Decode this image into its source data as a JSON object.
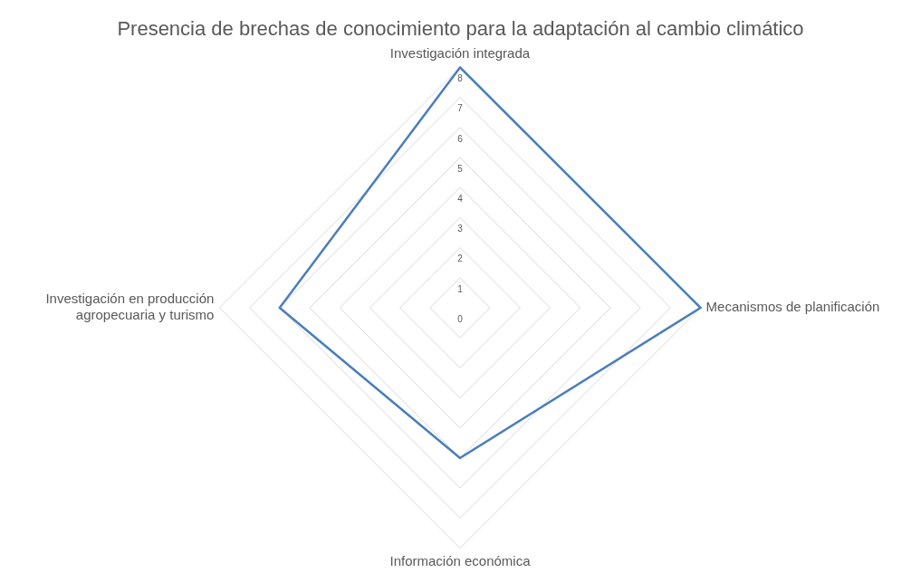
{
  "chart_data": {
    "type": "radar",
    "title": "Presencia de brechas de conocimiento para la adaptación al cambio climático",
    "categories": [
      "Investigación integrada",
      "Mecanismos de planificación",
      "Información económica",
      "Investigación en producción agropecuaria y turismo"
    ],
    "series": [
      {
        "color": "#4a7ebb",
        "values": [
          8,
          8,
          5,
          6
        ]
      }
    ],
    "ylim": [
      0,
      8
    ],
    "yticks": [
      0,
      1,
      2,
      3,
      4,
      5,
      6,
      7,
      8
    ],
    "grid": true,
    "legend": false,
    "marker": "none",
    "line_style": "solid"
  }
}
